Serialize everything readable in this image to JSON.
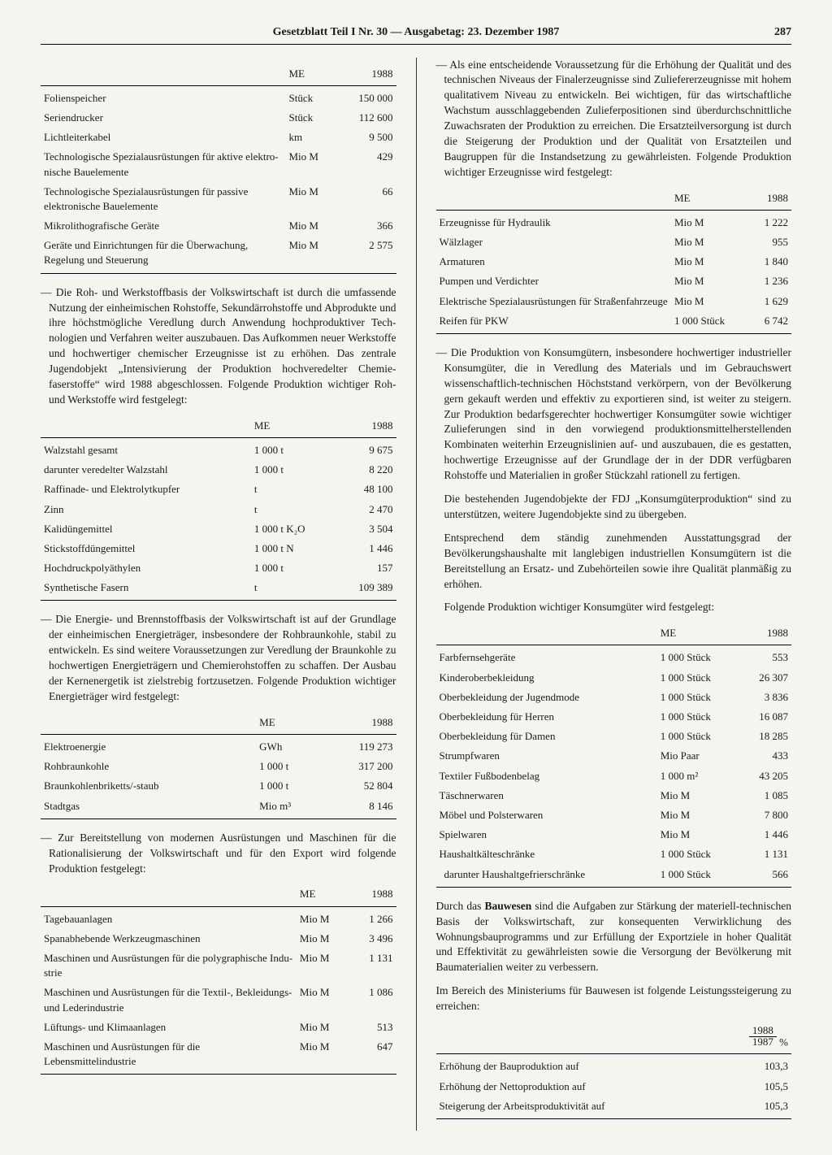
{
  "header": {
    "title": "Gesetzblatt Teil I Nr. 30 — Ausgabetag: 23. Dezember 1987",
    "page": "287"
  },
  "col_header_me": "ME",
  "col_header_year": "1988",
  "t1": {
    "rows": [
      {
        "label": "Folienspeicher",
        "me": "Stück",
        "val": "150 000"
      },
      {
        "label": "Seriendrucker",
        "me": "Stück",
        "val": "112 600"
      },
      {
        "label": "Lichtleiterkabel",
        "me": "km",
        "val": "9 500"
      },
      {
        "label": "Technologische Spezialausrü­stungen für aktive elektro­nische Bauelemente",
        "me": "Mio M",
        "val": "429"
      },
      {
        "label": "Technologische Spezialausrü­stungen für passive elektro­nische Bauelemente",
        "me": "Mio M",
        "val": "66"
      },
      {
        "label": "Mikrolithografische Geräte",
        "me": "Mio M",
        "val": "366"
      },
      {
        "label": "Geräte und Einrichtungen für die Überwachung, Regelung und Steuerung",
        "me": "Mio M",
        "val": "2 575"
      }
    ]
  },
  "p1": "— Die Roh- und Werkstoffbasis der Volkswirtschaft ist durch die umfassende Nutzung der einheimischen Rohstoffe, Sekundärrohstoffe und Abprodukte und ihre höchstmög­liche Veredlung durch Anwendung hochproduktiver Tech­nologien und Verfahren weiter auszubauen. Das Aufkom­men neuer Werkstoffe und hochwertiger chemischer Er­zeugnisse ist zu erhöhen. Das zentrale Jugendobjekt „Intensivierung der Produktion hochveredelter Chemie­faserstoffe“ wird 1988 abgeschlossen. Folgende Produk­tion wichtiger Roh- und Werkstoffe wird festgelegt:",
  "t2": {
    "rows": [
      {
        "label": "Walzstahl gesamt",
        "me": "1 000 t",
        "val": "9 675"
      },
      {
        "label": "darunter veredelter Walzstahl",
        "me": "1 000 t",
        "val": "8 220"
      },
      {
        "label": "Raffinade- und Elektrolyt­kupfer",
        "me": "t",
        "val": "48 100"
      },
      {
        "label": "Zinn",
        "me": "t",
        "val": "2 470"
      },
      {
        "label": "Kalidüngemittel",
        "me": "1 000 t K₂O",
        "val": "3 504"
      },
      {
        "label": "Stickstoffdüngemittel",
        "me": "1 000 t N",
        "val": "1 446"
      },
      {
        "label": "Hochdruckpolyäthylen",
        "me": "1 000 t",
        "val": "157"
      },
      {
        "label": "Synthetische Fasern",
        "me": "t",
        "val": "109 389"
      }
    ]
  },
  "p2": "— Die Energie- und Brennstoffbasis der Volkswirtschaft ist auf der Grundlage der einheimischen Energieträger, ins­besondere der Rohbraunkohle, stabil zu entwickeln. Es sind weitere Voraussetzungen zur Veredlung der Braunkohle zu hochwertigen Energieträgern und Chemierohstoffen zu schaffen. Der Ausbau der Kernenergetik ist zielstrebig fortzusetzen. Folgende Produktion wichtiger Energieträger wird festgelegt:",
  "t3": {
    "rows": [
      {
        "label": "Elektroenergie",
        "me": "GWh",
        "val": "119 273"
      },
      {
        "label": "Rohbraunkohle",
        "me": "1 000 t",
        "val": "317 200"
      },
      {
        "label": "Braunkohlenbriketts/-staub",
        "me": "1 000 t",
        "val": "52 804"
      },
      {
        "label": "Stadtgas",
        "me": "Mio m³",
        "val": "8 146"
      }
    ]
  },
  "p3": "— Zur Bereitstellung von modernen Ausrüstungen und Ma­schinen für die Rationalisierung der Volkswirtschaft und für den Export wird folgende Produktion festgelegt:",
  "t4": {
    "rows": [
      {
        "label": "Tagebauanlagen",
        "me": "Mio M",
        "val": "1 266"
      },
      {
        "label": "Spanabhebende Werkzeug­maschinen",
        "me": "Mio M",
        "val": "3 496"
      },
      {
        "label": "Maschinen und Ausrüstungen für die polygraphische Indu­strie",
        "me": "Mio M",
        "val": "1 131"
      },
      {
        "label": "Maschinen und Ausrüstungen für die Textil-, Bekleidungs- und Lederindustrie",
        "me": "Mio M",
        "val": "1 086"
      },
      {
        "label": "Lüftungs- und Klimaanlagen",
        "me": "Mio M",
        "val": "513"
      },
      {
        "label": "Maschinen und Ausrüstungen für die Lebensmittelindustrie",
        "me": "Mio M",
        "val": "647"
      }
    ]
  },
  "p4": "— Als eine entscheidende Voraussetzung für die Erhöhung der Qualität und des technischen Niveaus der Finalerzeug­nisse sind Zuliefererzeugnisse mit hohem qualitativem Niveau zu entwickeln. Bei wichtigen, für das wirtschaft­liche Wachstum ausschlaggebenden Zulieferpositionen sind überdurchschnittliche Zuwachsraten der Produktion zu erreichen. Die Ersatzteilversorgung ist durch die Stei­gerung der Produktion und der Qualität von Ersatzteilen und Baugruppen für die Instandsetzung zu gewährleisten. Folgende Produktion wichtiger Erzeugnisse wird festge­legt:",
  "t5": {
    "rows": [
      {
        "label": "Erzeugnisse für Hydraulik",
        "me": "Mio M",
        "val": "1 222"
      },
      {
        "label": "Wälzlager",
        "me": "Mio M",
        "val": "955"
      },
      {
        "label": "Armaturen",
        "me": "Mio M",
        "val": "1 840"
      },
      {
        "label": "Pumpen und Verdichter",
        "me": "Mio M",
        "val": "1 236"
      },
      {
        "label": "Elektrische Spezialausrüstun­gen für Straßenfahrzeuge",
        "me": "Mio M",
        "val": "1 629"
      },
      {
        "label": "Reifen für PKW",
        "me": "1 000 Stück",
        "val": "6 742"
      }
    ]
  },
  "p5a": "— Die Produktion von Konsumgütern, insbesondere hochwer­tiger industrieller Konsumgüter, die in Veredlung des Materials und im Gebrauchswert wissenschaftlich-techni­schen Höchststand verkörpern, von der Bevölkerung gern gekauft werden und effektiv zu exportieren sind, ist weiter zu steigern. Zur Produktion bedarfsgerechter hochwertiger Konsumgüter sowie wichtiger Zulieferungen sind in den vorwiegend produktionsmittelherstellenden Kombinaten weiterhin Erzeugnislinien auf- und auszubauen, die es gestatten, hochwertige Erzeugnisse auf der Grundlage der in der DDR verfügbaren Rohstoffe und Materialien in großer Stückzahl rationell zu fertigen.",
  "p5b": "Die bestehenden Jugendobjekte der FDJ „Konsumgüter­produktion“ sind zu unterstützen, weitere Jugendobjekte sind zu übergeben.",
  "p5c": "Entsprechend dem ständig zunehmenden Ausstattungsgrad der Bevölkerungshaushalte mit langlebigen industriellen Konsumgütern ist die Bereitstellung an Ersatz- und Zu­behörteilen sowie ihre Qualität planmäßig zu erhöhen.",
  "p5d": "Folgende Produktion wichtiger Konsumgüter wird festge­legt:",
  "t6": {
    "rows": [
      {
        "label": "Farbfernsehgeräte",
        "me": "1 000 Stück",
        "val": "553"
      },
      {
        "label": "Kinderoberbekleidung",
        "me": "1 000 Stück",
        "val": "26 307"
      },
      {
        "label": "Oberbekleidung der Jugend­mode",
        "me": "1 000 Stück",
        "val": "3 836"
      },
      {
        "label": "Oberbekleidung für Herren",
        "me": "1 000 Stück",
        "val": "16 087"
      },
      {
        "label": "Oberbekleidung für Damen",
        "me": "1 000 Stück",
        "val": "18 285"
      },
      {
        "label": "Strumpfwaren",
        "me": "Mio Paar",
        "val": "433"
      },
      {
        "label": "Textiler Fußbodenbelag",
        "me": "1 000 m²",
        "val": "43 205"
      },
      {
        "label": "Täschnerwaren",
        "me": "Mio M",
        "val": "1 085"
      },
      {
        "label": "Möbel und Polsterwaren",
        "me": "Mio M",
        "val": "7 800"
      },
      {
        "label": "Spielwaren",
        "me": "Mio M",
        "val": "1 446"
      },
      {
        "label": "Haushaltkälteschränke",
        "me": "1 000 Stück",
        "val": "1 131"
      },
      {
        "label": "darunter Haushaltgefrier­schränke",
        "me": "1 000 Stück",
        "val": "566",
        "sub": true
      }
    ]
  },
  "p6a_pre": "Durch das ",
  "p6a_bold": "Bauwesen",
  "p6a_post": " sind die Aufgaben zur Stärkung der materiell-technischen Basis der Volkswirtschaft, zur konse­quenten Verwirklichung des Wohnungsbauprogramms und zur Erfüllung der Exportziele in hoher Qualität und Effek­tivität zu gewährleisten sowie die Versorgung der Bevölkerung mit Baumaterialien weiter zu verbessern.",
  "p6b": "Im Bereich des Ministeriums für Bauwesen ist folgende Leistungssteigerung zu erreichen:",
  "t7": {
    "frac_top": "1988",
    "frac_bot": "1987",
    "frac_unit": "%",
    "rows": [
      {
        "label": "Erhöhung der Bauproduktion auf",
        "val": "103,3"
      },
      {
        "label": "Erhöhung der Nettoproduktion auf",
        "val": "105,5"
      },
      {
        "label": "Steigerung der Arbeitsproduktivität auf",
        "val": "105,3"
      }
    ]
  }
}
